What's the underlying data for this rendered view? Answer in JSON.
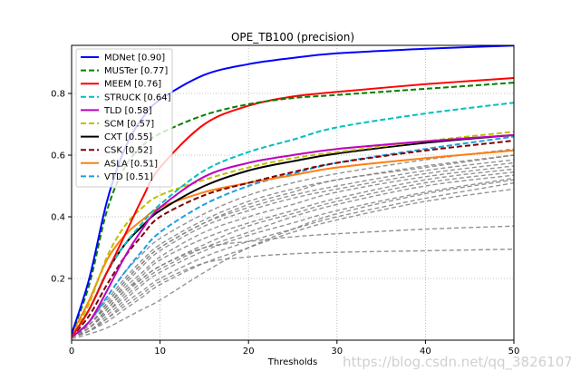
{
  "chart_data": {
    "type": "line",
    "title": "OPE_TB100 (precision)",
    "xlabel": "Thresholds",
    "ylabel": "",
    "xlim": [
      0,
      50
    ],
    "ylim": [
      0,
      0.956
    ],
    "xticks": [
      0,
      10,
      20,
      30,
      40,
      50
    ],
    "xtick_labels": [
      "0",
      "10",
      "20",
      "30",
      "40",
      "50"
    ],
    "yticks": [
      0.2,
      0.4,
      0.6,
      0.8
    ],
    "ytick_labels": [
      "0.2",
      "0.4",
      "0.6",
      "0.8"
    ],
    "grid": true,
    "legend_position": "top-left",
    "x": [
      0,
      2,
      4,
      6,
      8,
      10,
      15,
      20,
      25,
      30,
      40,
      50
    ],
    "series": [
      {
        "name": "MDNet [0.90]",
        "color": "#0000ff",
        "style": "solid",
        "values": [
          0.02,
          0.2,
          0.45,
          0.62,
          0.72,
          0.78,
          0.86,
          0.895,
          0.915,
          0.93,
          0.945,
          0.955
        ]
      },
      {
        "name": "MUSTer [0.77]",
        "color": "#008000",
        "style": "dashed",
        "values": [
          0.02,
          0.18,
          0.42,
          0.56,
          0.63,
          0.67,
          0.73,
          0.765,
          0.785,
          0.795,
          0.815,
          0.835
        ]
      },
      {
        "name": "MEEM [0.76]",
        "color": "#ff0000",
        "style": "solid",
        "values": [
          0.01,
          0.1,
          0.22,
          0.34,
          0.46,
          0.56,
          0.7,
          0.76,
          0.79,
          0.805,
          0.83,
          0.85
        ]
      },
      {
        "name": "STRUCK [0.64]",
        "color": "#00bfbf",
        "style": "dashed",
        "values": [
          0.01,
          0.1,
          0.22,
          0.31,
          0.38,
          0.44,
          0.55,
          0.61,
          0.65,
          0.69,
          0.735,
          0.77
        ]
      },
      {
        "name": "TLD [0.58]",
        "color": "#bf00bf",
        "style": "solid",
        "values": [
          0.01,
          0.06,
          0.16,
          0.27,
          0.36,
          0.43,
          0.53,
          0.575,
          0.6,
          0.62,
          0.645,
          0.665
        ]
      },
      {
        "name": "SCM [0.57]",
        "color": "#bfbf00",
        "style": "dashed",
        "values": [
          0.01,
          0.12,
          0.27,
          0.37,
          0.43,
          0.47,
          0.52,
          0.56,
          0.59,
          0.61,
          0.645,
          0.676
        ]
      },
      {
        "name": "CXT [0.55]",
        "color": "#000000",
        "style": "solid",
        "values": [
          0.01,
          0.1,
          0.22,
          0.31,
          0.37,
          0.42,
          0.5,
          0.55,
          0.58,
          0.605,
          0.64,
          0.665
        ]
      },
      {
        "name": "CSK [0.52]",
        "color": "#800000",
        "style": "dashed",
        "values": [
          0.01,
          0.08,
          0.18,
          0.27,
          0.34,
          0.4,
          0.47,
          0.51,
          0.545,
          0.575,
          0.615,
          0.647
        ]
      },
      {
        "name": "ASLA [0.51]",
        "color": "#ff7f0e",
        "style": "solid",
        "values": [
          0.02,
          0.13,
          0.26,
          0.34,
          0.39,
          0.43,
          0.48,
          0.51,
          0.535,
          0.56,
          0.59,
          0.615
        ]
      },
      {
        "name": "VTD [0.51]",
        "color": "#1ba1e2",
        "style": "dashed",
        "values": [
          0.01,
          0.06,
          0.14,
          0.22,
          0.29,
          0.35,
          0.44,
          0.5,
          0.54,
          0.575,
          0.62,
          0.66
        ]
      }
    ],
    "background_series": [
      {
        "values": [
          0.01,
          0.06,
          0.14,
          0.22,
          0.28,
          0.33,
          0.41,
          0.47,
          0.51,
          0.54,
          0.585,
          0.62
        ]
      },
      {
        "values": [
          0.01,
          0.06,
          0.13,
          0.2,
          0.26,
          0.31,
          0.39,
          0.45,
          0.49,
          0.52,
          0.565,
          0.6
        ]
      },
      {
        "values": [
          0.01,
          0.05,
          0.12,
          0.19,
          0.25,
          0.3,
          0.38,
          0.43,
          0.47,
          0.5,
          0.55,
          0.585
        ]
      },
      {
        "values": [
          0.01,
          0.05,
          0.11,
          0.18,
          0.24,
          0.29,
          0.37,
          0.42,
          0.46,
          0.49,
          0.54,
          0.575
        ]
      },
      {
        "values": [
          0.01,
          0.05,
          0.11,
          0.17,
          0.22,
          0.27,
          0.35,
          0.4,
          0.44,
          0.48,
          0.53,
          0.565
        ]
      },
      {
        "values": [
          0.01,
          0.04,
          0.1,
          0.16,
          0.21,
          0.26,
          0.33,
          0.38,
          0.42,
          0.46,
          0.52,
          0.555
        ]
      },
      {
        "values": [
          0.01,
          0.04,
          0.09,
          0.15,
          0.2,
          0.24,
          0.31,
          0.37,
          0.41,
          0.45,
          0.51,
          0.545
        ]
      },
      {
        "values": [
          0.01,
          0.04,
          0.09,
          0.14,
          0.19,
          0.23,
          0.3,
          0.35,
          0.4,
          0.44,
          0.5,
          0.535
        ]
      },
      {
        "values": [
          0.01,
          0.03,
          0.08,
          0.13,
          0.18,
          0.22,
          0.29,
          0.34,
          0.38,
          0.42,
          0.48,
          0.525
        ]
      },
      {
        "values": [
          0.01,
          0.03,
          0.07,
          0.12,
          0.16,
          0.2,
          0.27,
          0.32,
          0.36,
          0.4,
          0.46,
          0.51
        ]
      },
      {
        "values": [
          0.01,
          0.03,
          0.06,
          0.1,
          0.14,
          0.18,
          0.25,
          0.3,
          0.35,
          0.39,
          0.45,
          0.49
        ]
      },
      {
        "values": [
          0.01,
          0.04,
          0.1,
          0.16,
          0.2,
          0.24,
          0.3,
          0.32,
          0.335,
          0.345,
          0.36,
          0.37
        ]
      },
      {
        "values": [
          0.01,
          0.03,
          0.07,
          0.11,
          0.15,
          0.19,
          0.25,
          0.27,
          0.28,
          0.285,
          0.29,
          0.295
        ]
      },
      {
        "values": [
          0.005,
          0.02,
          0.04,
          0.07,
          0.1,
          0.13,
          0.22,
          0.3,
          0.36,
          0.41,
          0.475,
          0.52
        ]
      },
      {
        "values": [
          0.01,
          0.05,
          0.12,
          0.19,
          0.25,
          0.3,
          0.38,
          0.44,
          0.48,
          0.52,
          0.56,
          0.6
        ]
      }
    ],
    "background_color": "#808080"
  },
  "watermark": "https://blog.csdn.net/qq_38261075"
}
